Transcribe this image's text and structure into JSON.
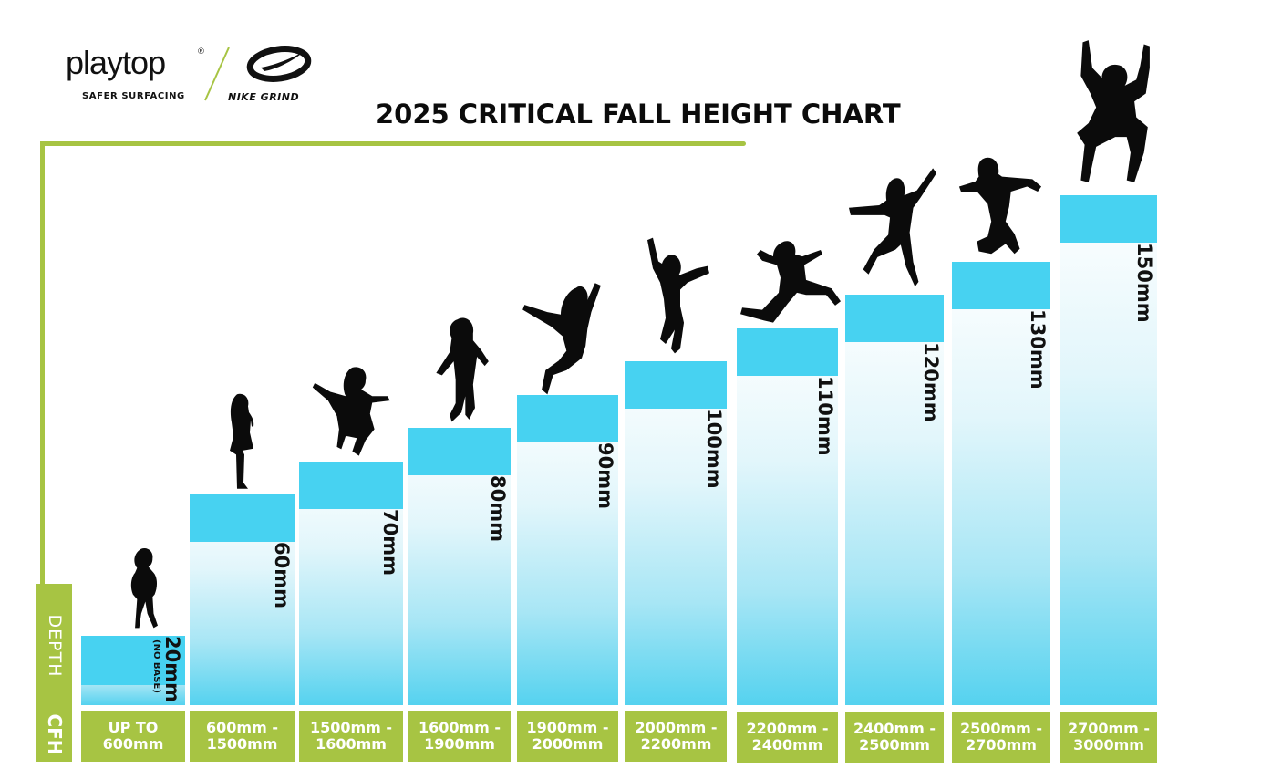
{
  "logo": {
    "wordmark": "playtop",
    "registered": "®",
    "subtitle": "SAFER SURFACING",
    "partner": "NIKE GRIND"
  },
  "labels": {
    "depth": "DEPTH",
    "cfh": "CFH"
  },
  "chart_data": {
    "type": "bar",
    "title": "2025 CRITICAL FALL HEIGHT CHART",
    "categories": [
      "UP TO 600mm",
      "600mm - 1500mm",
      "1500mm - 1600mm",
      "1600mm - 1900mm",
      "1900mm - 2000mm",
      "2000mm - 2200mm",
      "2200mm - 2400mm",
      "2400mm - 2500mm",
      "2500mm - 2700mm",
      "2700mm - 3000mm"
    ],
    "category_lines": [
      [
        "UP TO",
        "600mm"
      ],
      [
        "600mm -",
        "1500mm"
      ],
      [
        "1500mm -",
        "1600mm"
      ],
      [
        "1600mm -",
        "1900mm"
      ],
      [
        "1900mm -",
        "2000mm"
      ],
      [
        "2000mm -",
        "2200mm"
      ],
      [
        "2200mm -",
        "2400mm"
      ],
      [
        "2400mm -",
        "2500mm"
      ],
      [
        "2500mm -",
        "2700mm"
      ],
      [
        "2700mm -",
        "3000mm"
      ]
    ],
    "series": [
      {
        "name": "DEPTH",
        "values": [
          20,
          60,
          70,
          80,
          90,
          100,
          110,
          120,
          130,
          150
        ]
      }
    ],
    "value_labels": [
      "20mm",
      "60mm",
      "70mm",
      "80mm",
      "90mm",
      "100mm",
      "110mm",
      "120mm",
      "130mm",
      "150mm"
    ],
    "notes": [
      "(NO BASE)"
    ],
    "xlabel": "CFH",
    "ylabel": "DEPTH"
  },
  "colors": {
    "accent_green": "#a7c443",
    "cap_blue": "#47d2f1",
    "bar_bottom": "#55d2ef",
    "silhouette": "#0b0b0b"
  }
}
